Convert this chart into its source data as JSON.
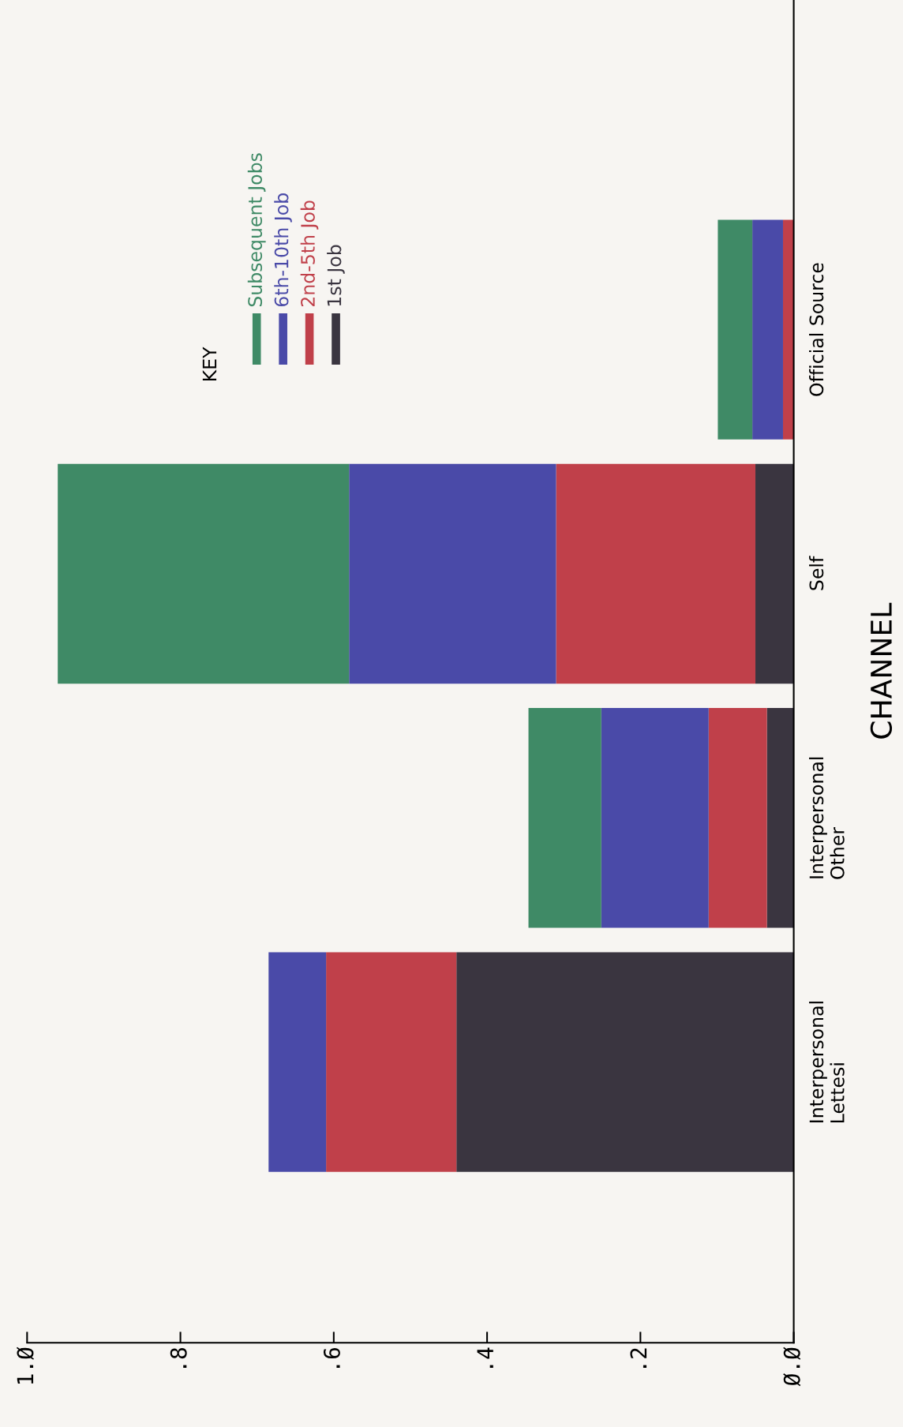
{
  "chart_data": {
    "type": "bar",
    "orientation": "horizontal",
    "stacked": true,
    "categories": [
      "Official Source",
      "Self",
      "Interpersonal\nOther",
      "Interpersonal\nLettesi"
    ],
    "series": [
      {
        "name": "1st Job",
        "color": "#3a3540",
        "values": [
          0.0,
          0.05,
          0.035,
          0.44
        ]
      },
      {
        "name": "2nd-5th Job",
        "color": "#c0404a",
        "values": [
          0.014,
          0.26,
          0.076,
          0.17
        ]
      },
      {
        "name": "6th-10th Job",
        "color": "#4a4aa8",
        "values": [
          0.04,
          0.27,
          0.14,
          0.075
        ]
      },
      {
        "name": "Subsequent Jobs",
        "color": "#3f8a66",
        "values": [
          0.045,
          0.38,
          0.095,
          0.0
        ]
      }
    ],
    "xlim": [
      1.0,
      0.0
    ],
    "xticks": [
      {
        "value": 0.0,
        "label": "Ø.Ø"
      },
      {
        "value": 0.2,
        "label": ".2"
      },
      {
        "value": 0.4,
        "label": ".4"
      },
      {
        "value": 0.6,
        "label": ".6"
      },
      {
        "value": 0.8,
        "label": ".8"
      },
      {
        "value": 1.0,
        "label": "1.Ø"
      }
    ],
    "ylabel": "CHANNEL",
    "legend_title": "KEY",
    "legend": "top",
    "grid": false
  }
}
